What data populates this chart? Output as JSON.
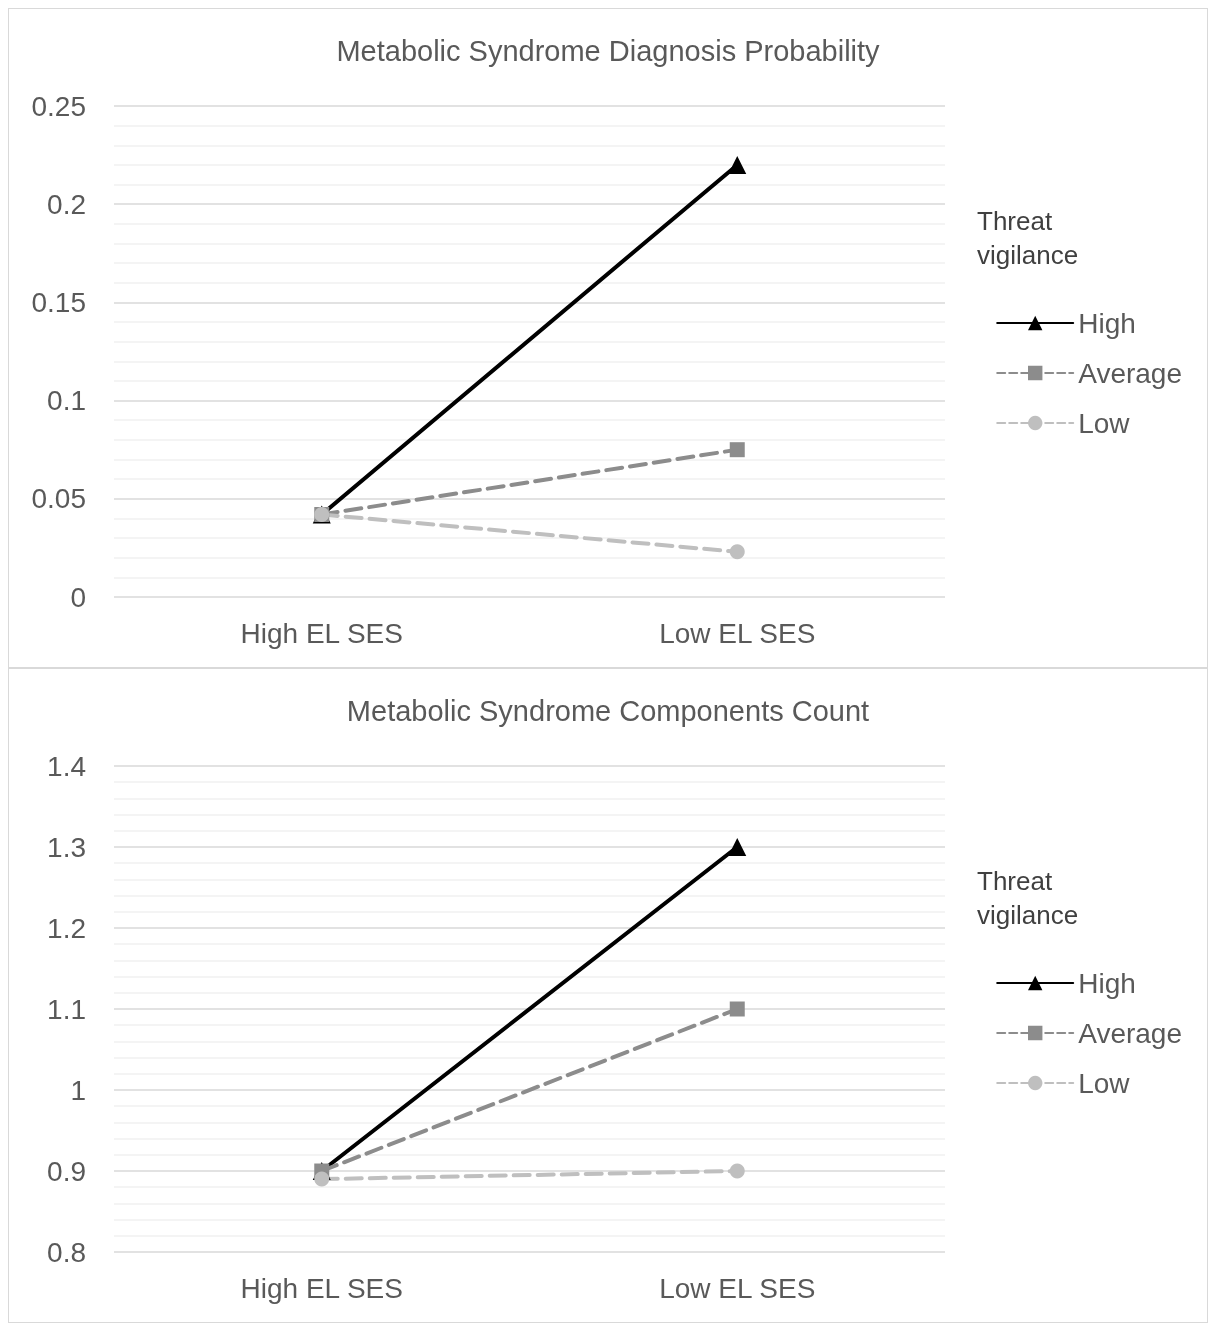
{
  "chart_data": [
    {
      "type": "line",
      "title": "Metabolic Syndrome Diagnosis Probability",
      "legend_title": "Threat vigilance",
      "categories": [
        "High EL SES",
        "Low EL SES"
      ],
      "series": [
        {
          "name": "High",
          "color": "#000000",
          "values": [
            0.042,
            0.22
          ],
          "marker": "triangle",
          "line_style": "solid"
        },
        {
          "name": "Average",
          "color": "#8c8c8c",
          "values": [
            0.042,
            0.075
          ],
          "marker": "square",
          "line_style": "dashed"
        },
        {
          "name": "Low",
          "color": "#bfbfbf",
          "values": [
            0.042,
            0.023
          ],
          "marker": "circle",
          "line_style": "dashed"
        }
      ],
      "ylim": [
        0,
        0.25
      ],
      "yticks": [
        0,
        0.05,
        0.1,
        0.15,
        0.2,
        0.25
      ],
      "grid": "y",
      "legend": "right"
    },
    {
      "type": "line",
      "title": "Metabolic Syndrome Components Count",
      "legend_title": "Threat vigilance",
      "categories": [
        "High EL SES",
        "Low EL SES"
      ],
      "series": [
        {
          "name": "High",
          "color": "#000000",
          "values": [
            0.9,
            1.3
          ],
          "marker": "triangle",
          "line_style": "solid"
        },
        {
          "name": "Average",
          "color": "#8c8c8c",
          "values": [
            0.9,
            1.1
          ],
          "marker": "square",
          "line_style": "dashed"
        },
        {
          "name": "Low",
          "color": "#bfbfbf",
          "values": [
            0.89,
            0.9
          ],
          "marker": "circle",
          "line_style": "dashed"
        }
      ],
      "ylim": [
        0.8,
        1.4
      ],
      "yticks": [
        0.8,
        0.9,
        1,
        1.1,
        1.2,
        1.3,
        1.4
      ],
      "grid": "y",
      "legend": "right"
    }
  ]
}
